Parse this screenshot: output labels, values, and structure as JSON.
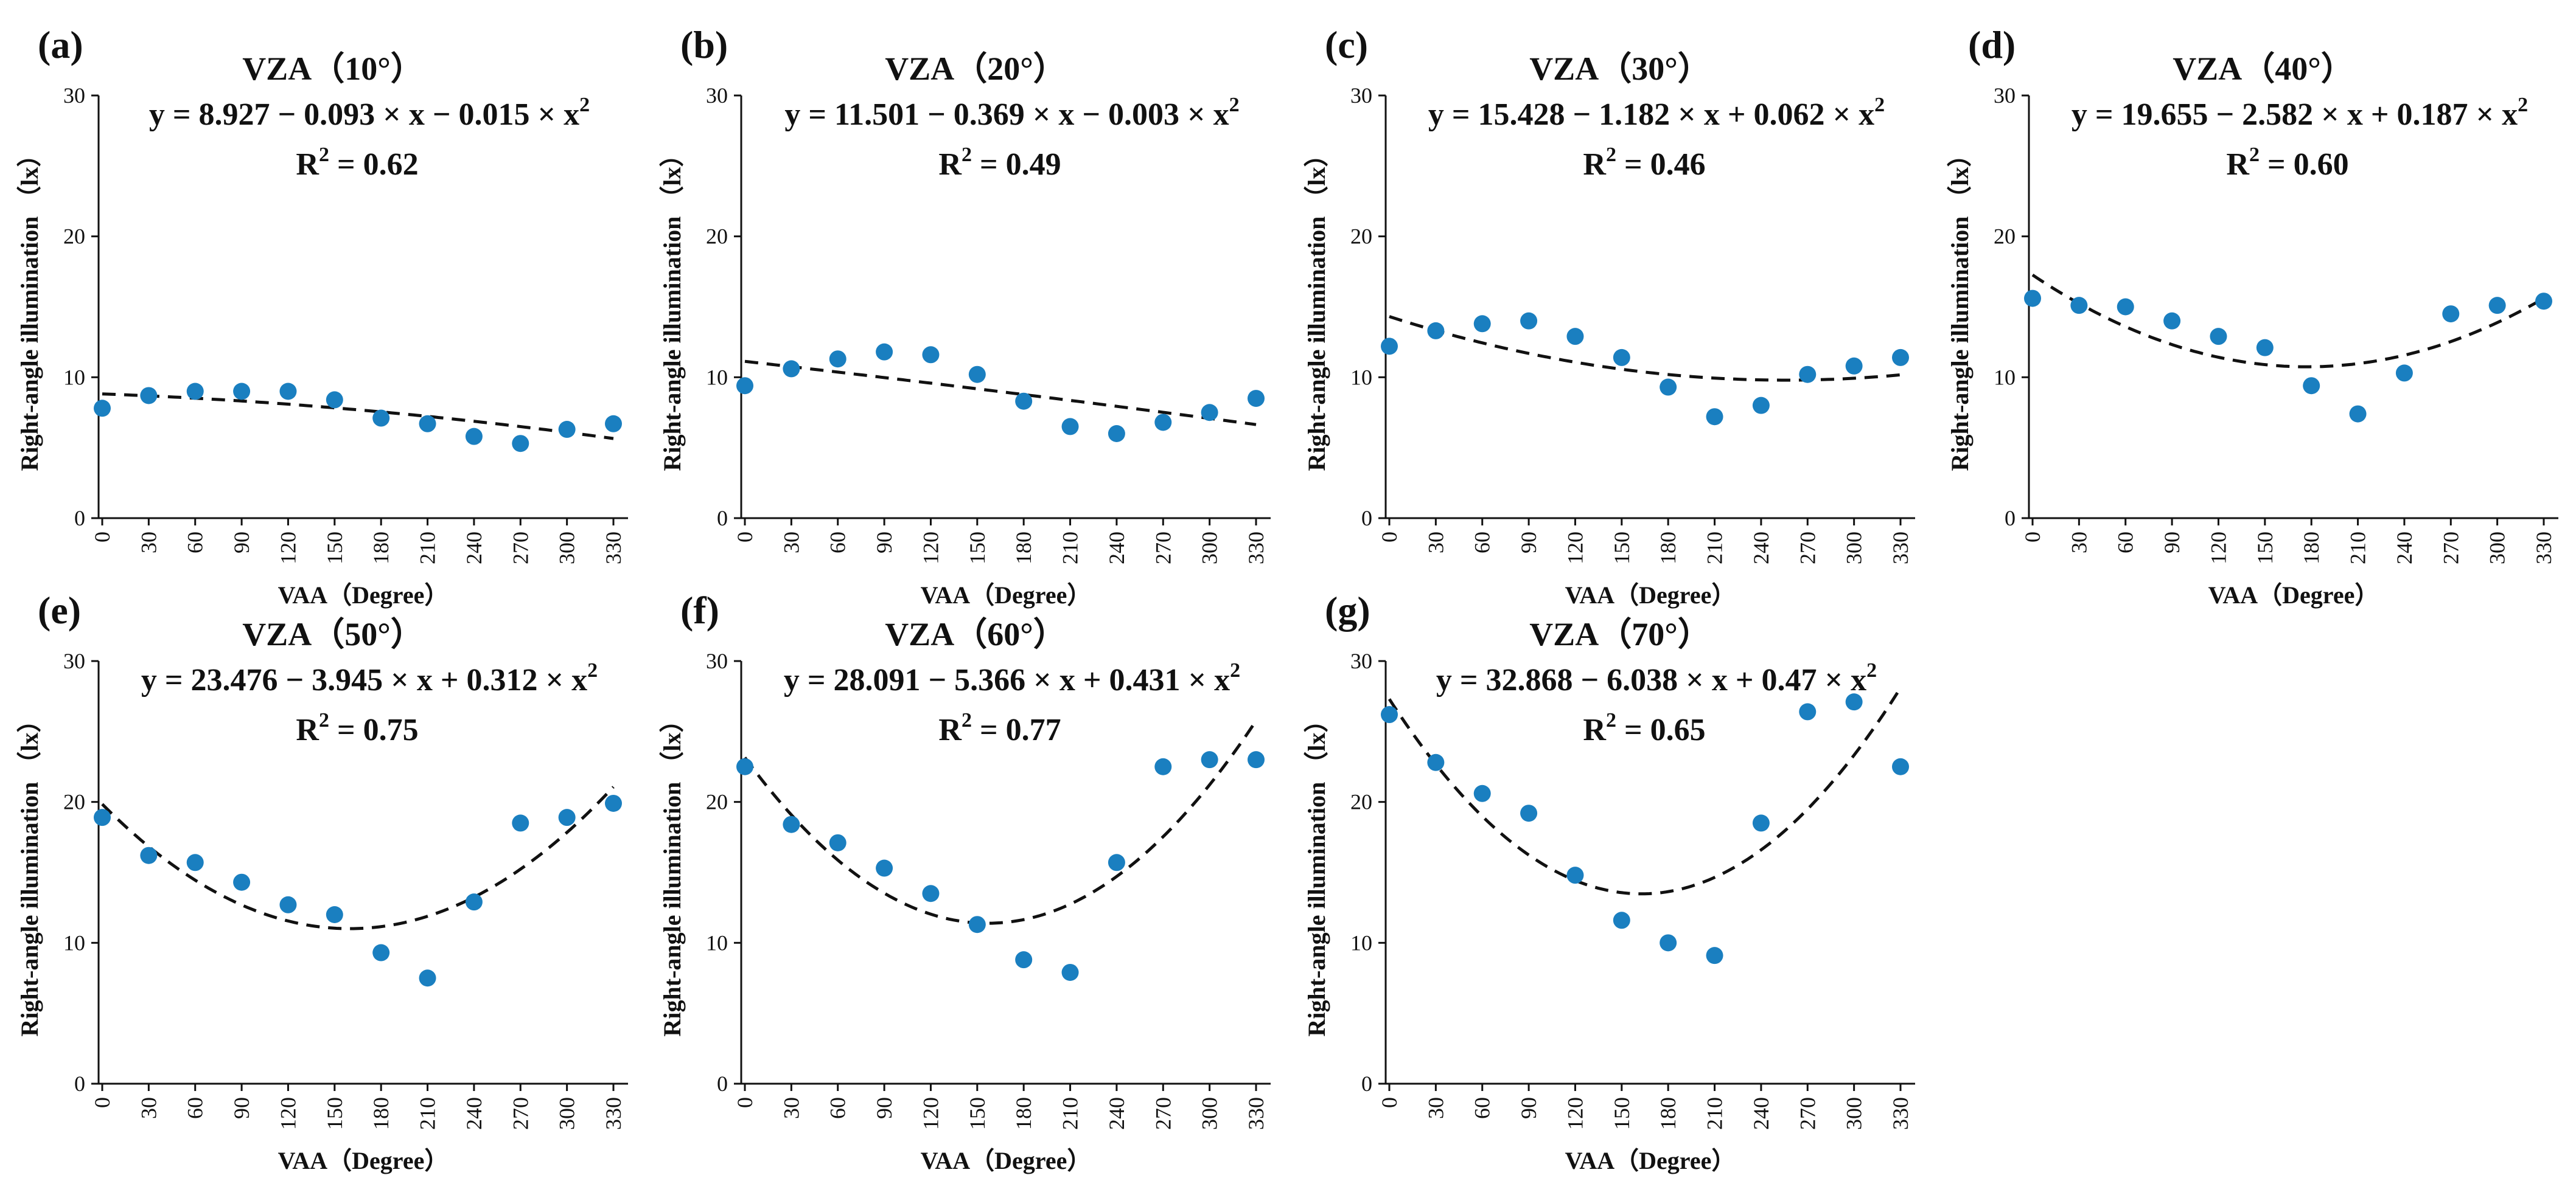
{
  "figure": {
    "accent_color": "#1a7fc0",
    "curve_color": "#111111"
  },
  "chart_data": [
    {
      "type": "scatter",
      "panel_label": "(a)",
      "title": "VZA（10°）",
      "equation": "y = 8.927 − 0.093 × x − 0.015 × x",
      "equation_sup": "2",
      "r2_text": "R",
      "r2_sup": "2",
      "r2_value": " = 0.62",
      "xlabel": "VAA（Degree）",
      "ylabel": "Right-angle illumination （lx）",
      "x_ticks": [
        "0",
        "30",
        "60",
        "90",
        "120",
        "150",
        "180",
        "210",
        "240",
        "270",
        "300",
        "330"
      ],
      "y_ticks": [
        "0",
        "10",
        "20",
        "30"
      ],
      "ylim": [
        0,
        30
      ],
      "x": [
        0,
        30,
        60,
        90,
        120,
        150,
        180,
        210,
        240,
        270,
        300,
        330
      ],
      "y": [
        7.8,
        8.7,
        9.0,
        9.0,
        9.0,
        8.4,
        7.1,
        6.7,
        5.8,
        5.3,
        6.3,
        6.7
      ],
      "fit": [
        8.927,
        -0.093,
        -0.015
      ]
    },
    {
      "type": "scatter",
      "panel_label": "(b)",
      "title": "VZA（20°）",
      "equation": "y = 11.501 − 0.369 × x − 0.003 × x",
      "equation_sup": "2",
      "r2_text": "R",
      "r2_sup": "2",
      "r2_value": " = 0.49",
      "xlabel": "VAA（Degree）",
      "ylabel": "Right-angle illumination （lx）",
      "x_ticks": [
        "0",
        "30",
        "60",
        "90",
        "120",
        "150",
        "180",
        "210",
        "240",
        "270",
        "300",
        "330"
      ],
      "y_ticks": [
        "0",
        "10",
        "20",
        "30"
      ],
      "ylim": [
        0,
        30
      ],
      "x": [
        0,
        30,
        60,
        90,
        120,
        150,
        180,
        210,
        240,
        270,
        300,
        330
      ],
      "y": [
        9.4,
        10.6,
        11.3,
        11.8,
        11.6,
        10.2,
        8.3,
        6.5,
        6.0,
        6.8,
        7.5,
        8.5
      ],
      "fit": [
        11.501,
        -0.369,
        -0.003
      ]
    },
    {
      "type": "scatter",
      "panel_label": "(c)",
      "title": "VZA（30°）",
      "equation": "y = 15.428 − 1.182 × x + 0.062 × x",
      "equation_sup": "2",
      "r2_text": "R",
      "r2_sup": "2",
      "r2_value": " = 0.46",
      "xlabel": "VAA（Degree）",
      "ylabel": "Right-angle illumination （lx）",
      "x_ticks": [
        "0",
        "30",
        "60",
        "90",
        "120",
        "150",
        "180",
        "210",
        "240",
        "270",
        "300",
        "330"
      ],
      "y_ticks": [
        "0",
        "10",
        "20",
        "30"
      ],
      "ylim": [
        0,
        30
      ],
      "x": [
        0,
        30,
        60,
        90,
        120,
        150,
        180,
        210,
        240,
        270,
        300,
        330
      ],
      "y": [
        12.2,
        13.3,
        13.8,
        14.0,
        12.9,
        11.4,
        9.3,
        7.2,
        8.0,
        10.2,
        10.8,
        11.4
      ],
      "fit": [
        15.428,
        -1.182,
        0.062
      ]
    },
    {
      "type": "scatter",
      "panel_label": "(d)",
      "title": "VZA（40°）",
      "equation": "y = 19.655 − 2.582 × x + 0.187 × x",
      "equation_sup": "2",
      "r2_text": "R",
      "r2_sup": "2",
      "r2_value": " = 0.60",
      "xlabel": "VAA（Degree）",
      "ylabel": "Right-angle illumination （lx）",
      "x_ticks": [
        "0",
        "30",
        "60",
        "90",
        "120",
        "150",
        "180",
        "210",
        "240",
        "270",
        "300",
        "330"
      ],
      "y_ticks": [
        "0",
        "10",
        "20",
        "30"
      ],
      "ylim": [
        0,
        30
      ],
      "x": [
        0,
        30,
        60,
        90,
        120,
        150,
        180,
        210,
        240,
        270,
        300,
        330
      ],
      "y": [
        15.6,
        15.1,
        15.0,
        14.0,
        12.9,
        12.1,
        9.4,
        7.4,
        10.3,
        14.5,
        15.1,
        15.4
      ],
      "fit": [
        19.655,
        -2.582,
        0.187
      ]
    },
    {
      "type": "scatter",
      "panel_label": "(e)",
      "title": "VZA（50°）",
      "equation": "y = 23.476 − 3.945 × x + 0.312 × x",
      "equation_sup": "2",
      "r2_text": "R",
      "r2_sup": "2",
      "r2_value": " = 0.75",
      "xlabel": "VAA（Degree）",
      "ylabel": "Right-angle illumination （lx）",
      "x_ticks": [
        "0",
        "30",
        "60",
        "90",
        "120",
        "150",
        "180",
        "210",
        "240",
        "270",
        "300",
        "330"
      ],
      "y_ticks": [
        "0",
        "10",
        "20",
        "30"
      ],
      "ylim": [
        0,
        30
      ],
      "x": [
        0,
        30,
        60,
        90,
        120,
        150,
        180,
        210,
        240,
        270,
        300,
        330
      ],
      "y": [
        18.9,
        16.2,
        15.7,
        14.3,
        12.7,
        12.0,
        9.3,
        7.5,
        12.9,
        18.5,
        18.9,
        19.9
      ],
      "fit": [
        23.476,
        -3.945,
        0.312
      ]
    },
    {
      "type": "scatter",
      "panel_label": "(f)",
      "title": "VZA（60°）",
      "equation": "y = 28.091 − 5.366 × x + 0.431 × x",
      "equation_sup": "2",
      "r2_text": "R",
      "r2_sup": "2",
      "r2_value": " = 0.77",
      "xlabel": "VAA（Degree）",
      "ylabel": "Right-angle illumination （lx）",
      "x_ticks": [
        "0",
        "30",
        "60",
        "90",
        "120",
        "150",
        "180",
        "210",
        "240",
        "270",
        "300",
        "330"
      ],
      "y_ticks": [
        "0",
        "10",
        "20",
        "30"
      ],
      "ylim": [
        0,
        30
      ],
      "x": [
        0,
        30,
        60,
        90,
        120,
        150,
        180,
        210,
        240,
        270,
        300,
        330
      ],
      "y": [
        22.5,
        18.4,
        17.1,
        15.3,
        13.5,
        11.3,
        8.8,
        7.9,
        15.7,
        22.5,
        23.0,
        23.0
      ],
      "fit": [
        28.091,
        -5.366,
        0.431
      ]
    },
    {
      "type": "scatter",
      "panel_label": "(g)",
      "title": "VZA（70°）",
      "equation": "y = 32.868 − 6.038 × x + 0.47 × x",
      "equation_sup": "2",
      "r2_text": "R",
      "r2_sup": "2",
      "r2_value": " = 0.65",
      "xlabel": "VAA（Degree）",
      "ylabel": "Right-angle illumination （lx）",
      "x_ticks": [
        "0",
        "30",
        "60",
        "90",
        "120",
        "150",
        "180",
        "210",
        "240",
        "270",
        "300",
        "330"
      ],
      "y_ticks": [
        "0",
        "10",
        "20",
        "30"
      ],
      "ylim": [
        0,
        30
      ],
      "x": [
        0,
        30,
        60,
        90,
        120,
        150,
        180,
        210,
        240,
        270,
        300,
        330
      ],
      "y": [
        26.2,
        22.8,
        20.6,
        19.2,
        14.8,
        11.6,
        10.0,
        9.1,
        18.5,
        26.4,
        27.1,
        22.5
      ],
      "fit": [
        32.868,
        -6.038,
        0.47
      ]
    }
  ]
}
